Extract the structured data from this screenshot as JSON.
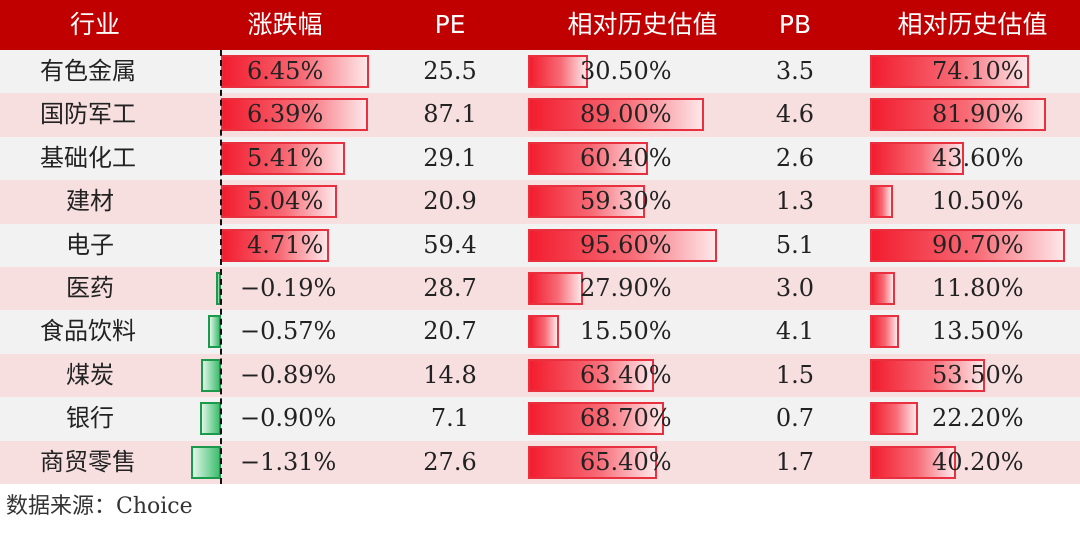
{
  "header": {
    "industry": "行业",
    "change": "涨跌幅",
    "pe": "PE",
    "pe_rel": "相对历史估值",
    "pb": "PB",
    "pb_rel": "相对历史估值"
  },
  "colors": {
    "header_bg": "#c00000",
    "header_text": "#ffffff",
    "row_stripe_a": "#f2f2f2",
    "row_stripe_b": "#f7dfe0",
    "bar_red": "#f21d2f",
    "bar_green": "#3fbf6f"
  },
  "chart_data": {
    "type": "table",
    "columns": [
      "行业",
      "涨跌幅",
      "PE",
      "相对历史估值",
      "PB",
      "相对历史估值"
    ],
    "rows": [
      {
        "name": "有色金属",
        "indent": false,
        "change": 6.45,
        "change_label": "6.45%",
        "pe": "25.5",
        "pe_rel": 30.5,
        "pe_rel_label": "30.50%",
        "pb": "3.5",
        "pb_rel": 74.1,
        "pb_rel_label": "74.10%"
      },
      {
        "name": "国防军工",
        "indent": false,
        "change": 6.39,
        "change_label": "6.39%",
        "pe": "87.1",
        "pe_rel": 89.0,
        "pe_rel_label": "89.00%",
        "pb": "4.6",
        "pb_rel": 81.9,
        "pb_rel_label": "81.90%"
      },
      {
        "name": "基础化工",
        "indent": false,
        "change": 5.41,
        "change_label": "5.41%",
        "pe": "29.1",
        "pe_rel": 60.4,
        "pe_rel_label": "60.40%",
        "pb": "2.6",
        "pb_rel": 43.6,
        "pb_rel_label": "43.60%"
      },
      {
        "name": "建材",
        "indent": true,
        "change": 5.04,
        "change_label": "5.04%",
        "pe": "20.9",
        "pe_rel": 59.3,
        "pe_rel_label": "59.30%",
        "pb": "1.3",
        "pb_rel": 10.5,
        "pb_rel_label": "10.50%"
      },
      {
        "name": "电子",
        "indent": true,
        "change": 4.71,
        "change_label": "4.71%",
        "pe": "59.4",
        "pe_rel": 95.6,
        "pe_rel_label": "95.60%",
        "pb": "5.1",
        "pb_rel": 90.7,
        "pb_rel_label": "90.70%"
      },
      {
        "name": "医药",
        "indent": true,
        "change": -0.19,
        "change_label": "-0.19%",
        "pe": "28.7",
        "pe_rel": 27.9,
        "pe_rel_label": "27.90%",
        "pb": "3.0",
        "pb_rel": 11.8,
        "pb_rel_label": "11.80%"
      },
      {
        "name": "食品饮料",
        "indent": false,
        "change": -0.57,
        "change_label": "-0.57%",
        "pe": "20.7",
        "pe_rel": 15.5,
        "pe_rel_label": "15.50%",
        "pb": "4.1",
        "pb_rel": 13.5,
        "pb_rel_label": "13.50%"
      },
      {
        "name": "煤炭",
        "indent": true,
        "change": -0.89,
        "change_label": "-0.89%",
        "pe": "14.8",
        "pe_rel": 63.4,
        "pe_rel_label": "63.40%",
        "pb": "1.5",
        "pb_rel": 53.5,
        "pb_rel_label": "53.50%"
      },
      {
        "name": "银行",
        "indent": true,
        "change": -0.9,
        "change_label": "-0.90%",
        "pe": "7.1",
        "pe_rel": 68.7,
        "pe_rel_label": "68.70%",
        "pb": "0.7",
        "pb_rel": 22.2,
        "pb_rel_label": "22.20%"
      },
      {
        "name": "商贸零售",
        "indent": false,
        "change": -1.31,
        "change_label": "-1.31%",
        "pe": "27.6",
        "pe_rel": 65.4,
        "pe_rel_label": "65.40%",
        "pb": "1.7",
        "pb_rel": 40.2,
        "pb_rel_label": "40.20%"
      }
    ]
  },
  "source": "数据来源：Choice"
}
